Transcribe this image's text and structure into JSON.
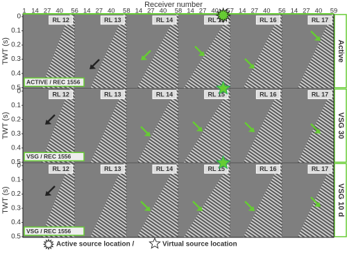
{
  "figure": {
    "x_label": "Receiver number",
    "x_ticks": [
      [
        1,
        14,
        27,
        40
      ],
      [
        56,
        14,
        27,
        40
      ],
      [
        58,
        14,
        27,
        40
      ],
      [
        58,
        14,
        27,
        40
      ],
      [
        57,
        14,
        27,
        40
      ],
      [
        56,
        14,
        27,
        40
      ],
      [
        59
      ]
    ],
    "y_label": "TWT (s)",
    "y_ticks": [
      0,
      0.1,
      0.2,
      0.3,
      0.4,
      0.5
    ],
    "panel_labels": [
      "RL 12",
      "RL 13",
      "RL 14",
      "RL 15",
      "RL 16",
      "RL 17"
    ],
    "rows": [
      {
        "name": "Active",
        "tag": "ACTIVE / REC 1556"
      },
      {
        "name": "VSG 30",
        "tag": "VSG / REC 1556"
      },
      {
        "name": "VSG 10 d",
        "tag": "VSG / REC 1556"
      }
    ],
    "legend": [
      "Active source location /",
      "Virtual source location"
    ]
  }
}
